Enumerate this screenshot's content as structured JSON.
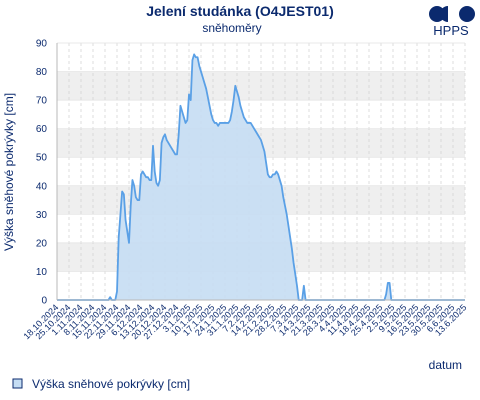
{
  "chart_data": {
    "type": "area",
    "title": "Jelení studánka (O4JEST01)",
    "subtitle": "sněhoměry",
    "ylabel": "Výška sněhové pokrývky [cm]",
    "xlabel": "datum",
    "ylim": [
      0,
      90
    ],
    "yticks": [
      0,
      10,
      20,
      30,
      40,
      50,
      60,
      70,
      80,
      90
    ],
    "grid": true,
    "legend_position": "bottom-left",
    "colors": {
      "line": "#5aa0e6",
      "fill": "#c5ddf3",
      "band": "#efefef",
      "text": "#0b2a6e"
    },
    "x_tick_labels": [
      "18.10.2024",
      "25.10.2024",
      "1.11.2024",
      "8.11.2024",
      "15.11.2024",
      "22.11.2024",
      "29.11.2024",
      "6.12.2024",
      "13.12.2024",
      "20.12.2024",
      "27.12.2024",
      "3.1.2025",
      "10.1.2025",
      "17.1.2025",
      "24.1.2025",
      "31.1.2025",
      "7.2.2025",
      "14.2.2025",
      "21.2.2025",
      "28.2.2025",
      "7.3.2025",
      "14.3.2025",
      "21.3.2025",
      "28.3.2025",
      "4.4.2025",
      "11.4.2025",
      "18.4.2025",
      "25.4.2025",
      "2.5.2025",
      "9.5.2025",
      "16.5.2025",
      "23.5.2025",
      "30.5.2025",
      "6.6.2025",
      "13.6.2025"
    ],
    "series": [
      {
        "name": "Výška sněhové pokrývky [cm]",
        "points": [
          [
            "2024-10-18",
            0
          ],
          [
            "2024-11-17",
            0
          ],
          [
            "2024-11-18",
            1
          ],
          [
            "2024-11-19",
            0
          ],
          [
            "2024-11-21",
            0
          ],
          [
            "2024-11-22",
            3
          ],
          [
            "2024-11-23",
            22
          ],
          [
            "2024-11-24",
            30
          ],
          [
            "2024-11-25",
            38
          ],
          [
            "2024-11-26",
            37
          ],
          [
            "2024-11-27",
            28
          ],
          [
            "2024-11-28",
            24
          ],
          [
            "2024-11-29",
            20
          ],
          [
            "2024-11-30",
            33
          ],
          [
            "2024-12-01",
            42
          ],
          [
            "2024-12-02",
            40
          ],
          [
            "2024-12-03",
            36
          ],
          [
            "2024-12-04",
            35
          ],
          [
            "2024-12-05",
            35
          ],
          [
            "2024-12-06",
            44
          ],
          [
            "2024-12-07",
            45
          ],
          [
            "2024-12-08",
            44
          ],
          [
            "2024-12-09",
            43
          ],
          [
            "2024-12-10",
            43
          ],
          [
            "2024-12-11",
            42
          ],
          [
            "2024-12-12",
            42
          ],
          [
            "2024-12-13",
            54
          ],
          [
            "2024-12-14",
            45
          ],
          [
            "2024-12-15",
            41
          ],
          [
            "2024-12-16",
            40
          ],
          [
            "2024-12-17",
            42
          ],
          [
            "2024-12-18",
            55
          ],
          [
            "2024-12-19",
            57
          ],
          [
            "2024-12-20",
            58
          ],
          [
            "2024-12-21",
            56
          ],
          [
            "2024-12-22",
            55
          ],
          [
            "2024-12-23",
            54
          ],
          [
            "2024-12-24",
            53
          ],
          [
            "2024-12-25",
            52
          ],
          [
            "2024-12-26",
            51
          ],
          [
            "2024-12-27",
            51
          ],
          [
            "2024-12-28",
            58
          ],
          [
            "2024-12-29",
            68
          ],
          [
            "2024-12-30",
            66
          ],
          [
            "2024-12-31",
            64
          ],
          [
            "2025-01-01",
            62
          ],
          [
            "2025-01-02",
            63
          ],
          [
            "2025-01-03",
            72
          ],
          [
            "2025-01-04",
            70
          ],
          [
            "2025-01-05",
            84
          ],
          [
            "2025-01-06",
            86
          ],
          [
            "2025-01-07",
            85
          ],
          [
            "2025-01-08",
            85
          ],
          [
            "2025-01-09",
            82
          ],
          [
            "2025-01-10",
            80
          ],
          [
            "2025-01-11",
            78
          ],
          [
            "2025-01-12",
            76
          ],
          [
            "2025-01-13",
            74
          ],
          [
            "2025-01-14",
            71
          ],
          [
            "2025-01-15",
            68
          ],
          [
            "2025-01-16",
            65
          ],
          [
            "2025-01-17",
            63
          ],
          [
            "2025-01-18",
            62
          ],
          [
            "2025-01-19",
            62
          ],
          [
            "2025-01-20",
            61
          ],
          [
            "2025-01-21",
            62
          ],
          [
            "2025-01-22",
            62
          ],
          [
            "2025-01-23",
            62
          ],
          [
            "2025-01-24",
            62
          ],
          [
            "2025-01-25",
            62
          ],
          [
            "2025-01-26",
            62
          ],
          [
            "2025-01-27",
            63
          ],
          [
            "2025-01-28",
            66
          ],
          [
            "2025-01-29",
            70
          ],
          [
            "2025-01-30",
            75
          ],
          [
            "2025-01-31",
            73
          ],
          [
            "2025-02-01",
            71
          ],
          [
            "2025-02-02",
            68
          ],
          [
            "2025-02-03",
            66
          ],
          [
            "2025-02-04",
            64
          ],
          [
            "2025-02-05",
            63
          ],
          [
            "2025-02-06",
            62
          ],
          [
            "2025-02-07",
            62
          ],
          [
            "2025-02-08",
            62
          ],
          [
            "2025-02-09",
            61
          ],
          [
            "2025-02-10",
            60
          ],
          [
            "2025-02-11",
            59
          ],
          [
            "2025-02-12",
            58
          ],
          [
            "2025-02-13",
            57
          ],
          [
            "2025-02-14",
            56
          ],
          [
            "2025-02-15",
            54
          ],
          [
            "2025-02-16",
            52
          ],
          [
            "2025-02-17",
            48
          ],
          [
            "2025-02-18",
            44
          ],
          [
            "2025-02-19",
            43
          ],
          [
            "2025-02-20",
            43
          ],
          [
            "2025-02-21",
            44
          ],
          [
            "2025-02-22",
            44
          ],
          [
            "2025-02-23",
            45
          ],
          [
            "2025-02-24",
            44
          ],
          [
            "2025-02-25",
            42
          ],
          [
            "2025-02-26",
            40
          ],
          [
            "2025-02-27",
            36
          ],
          [
            "2025-02-28",
            33
          ],
          [
            "2025-03-01",
            30
          ],
          [
            "2025-03-02",
            26
          ],
          [
            "2025-03-03",
            22
          ],
          [
            "2025-03-04",
            18
          ],
          [
            "2025-03-05",
            13
          ],
          [
            "2025-03-06",
            9
          ],
          [
            "2025-03-07",
            5
          ],
          [
            "2025-03-08",
            0
          ],
          [
            "2025-03-09",
            0
          ],
          [
            "2025-03-10",
            0
          ],
          [
            "2025-03-11",
            5
          ],
          [
            "2025-03-12",
            0
          ],
          [
            "2025-04-27",
            0
          ],
          [
            "2025-04-28",
            2
          ],
          [
            "2025-04-29",
            6
          ],
          [
            "2025-04-30",
            6
          ],
          [
            "2025-05-01",
            0
          ],
          [
            "2025-06-13",
            0
          ]
        ]
      }
    ]
  },
  "logo": {
    "text": "HPPS"
  },
  "legend": {
    "label": "Výška sněhové pokrývky [cm]"
  }
}
